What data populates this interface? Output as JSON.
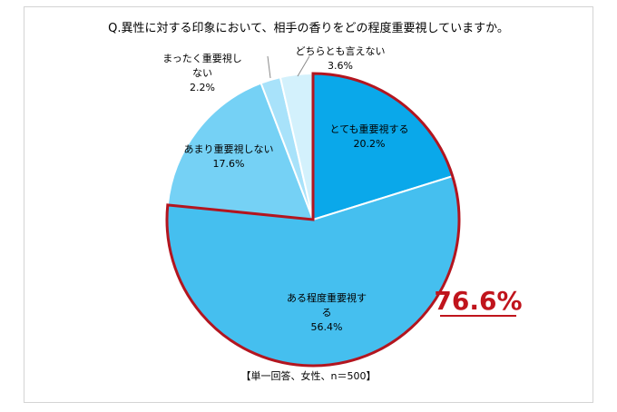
{
  "chart_data": {
    "type": "pie",
    "title": "Q.異性に対する印象において、相手の香りをどの程度重要視していますか。",
    "slices": [
      {
        "label_lines": [
          "とても重要視する"
        ],
        "value": 20.2,
        "value_label": "20.2%",
        "color": "#0aa8ea",
        "emphasized": true
      },
      {
        "label_lines": [
          "ある程度重要視す",
          "る"
        ],
        "value": 56.4,
        "value_label": "56.4%",
        "color": "#45bfef",
        "emphasized": true
      },
      {
        "label_lines": [
          "あまり重要視しない"
        ],
        "value": 17.6,
        "value_label": "17.6%",
        "color": "#75d1f5",
        "emphasized": false
      },
      {
        "label_lines": [
          "まったく重要視し",
          "ない"
        ],
        "value": 2.2,
        "value_label": "2.2%",
        "color": "#a8e2fa",
        "emphasized": false
      },
      {
        "label_lines": [
          "どちらとも言えない"
        ],
        "value": 3.6,
        "value_label": "3.6%",
        "color": "#d3f1fc",
        "emphasized": false
      }
    ],
    "start_position": "12 o'clock",
    "direction": "clockwise",
    "highlight": {
      "text": "76.6%",
      "color": "#c0141c",
      "underline": true
    },
    "emphasis_border_color": "#b3151f",
    "note": "【単一回答、女性、n＝500】"
  }
}
